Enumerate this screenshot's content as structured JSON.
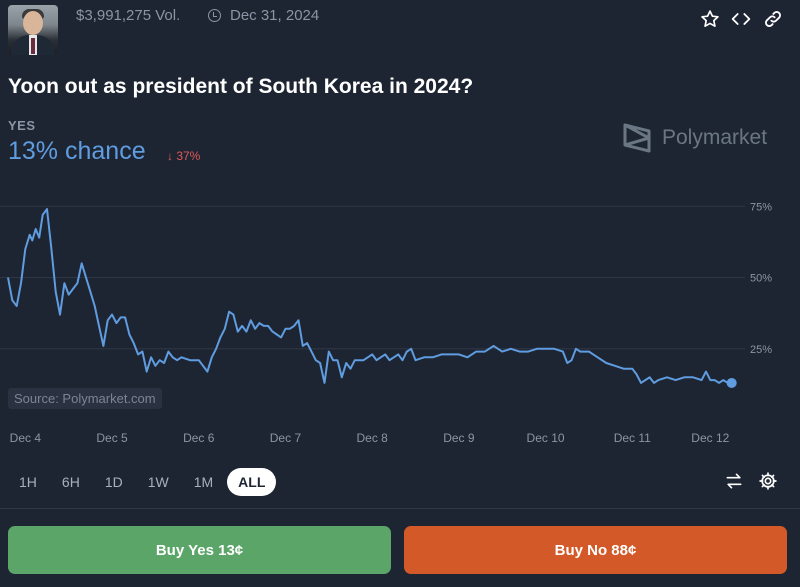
{
  "header": {
    "volume": "$3,991,275 Vol.",
    "end_date": "Dec 31, 2024",
    "icons": [
      "star-icon",
      "embed-code-icon",
      "link-icon"
    ]
  },
  "market": {
    "title": "Yoon out as president of South Korea in 2024?",
    "outcome_label": "YES",
    "chance_text": "13% chance",
    "delta_text": "↓ 37%",
    "brand": "Polymarket"
  },
  "chart": {
    "source": "Source: Polymarket.com"
  },
  "chart_data": {
    "type": "line",
    "ylim": [
      0,
      80
    ],
    "y_ticks": [
      {
        "value": 75,
        "label": "75%"
      },
      {
        "value": 50,
        "label": "50%"
      },
      {
        "value": 25,
        "label": "25%"
      }
    ],
    "x_domain": [
      0,
      8.5
    ],
    "x_ticks": [
      {
        "value": 0.2,
        "label": "Dec 4"
      },
      {
        "value": 1.2,
        "label": "Dec 5"
      },
      {
        "value": 2.2,
        "label": "Dec 6"
      },
      {
        "value": 3.2,
        "label": "Dec 7"
      },
      {
        "value": 4.2,
        "label": "Dec 8"
      },
      {
        "value": 5.2,
        "label": "Dec 9"
      },
      {
        "value": 6.2,
        "label": "Dec 10"
      },
      {
        "value": 7.2,
        "label": "Dec 11"
      },
      {
        "value": 8.1,
        "label": "Dec 12"
      }
    ],
    "series": [
      {
        "color": "#5f9ce0",
        "points": [
          [
            0,
            50
          ],
          [
            0.05,
            42
          ],
          [
            0.1,
            40
          ],
          [
            0.15,
            48
          ],
          [
            0.2,
            60
          ],
          [
            0.25,
            65
          ],
          [
            0.28,
            63
          ],
          [
            0.32,
            67
          ],
          [
            0.36,
            64
          ],
          [
            0.4,
            72
          ],
          [
            0.45,
            74
          ],
          [
            0.5,
            60
          ],
          [
            0.55,
            45
          ],
          [
            0.6,
            37
          ],
          [
            0.65,
            48
          ],
          [
            0.7,
            44
          ],
          [
            0.75,
            46
          ],
          [
            0.8,
            48
          ],
          [
            0.85,
            55
          ],
          [
            0.9,
            50
          ],
          [
            0.95,
            45
          ],
          [
            1.0,
            40
          ],
          [
            1.05,
            33
          ],
          [
            1.1,
            26
          ],
          [
            1.15,
            35
          ],
          [
            1.2,
            37
          ],
          [
            1.25,
            34
          ],
          [
            1.3,
            36
          ],
          [
            1.35,
            36
          ],
          [
            1.4,
            30
          ],
          [
            1.45,
            27
          ],
          [
            1.5,
            23
          ],
          [
            1.55,
            24
          ],
          [
            1.6,
            17
          ],
          [
            1.65,
            22
          ],
          [
            1.7,
            19
          ],
          [
            1.75,
            21
          ],
          [
            1.8,
            20
          ],
          [
            1.85,
            24
          ],
          [
            1.9,
            22
          ],
          [
            1.95,
            21
          ],
          [
            2.0,
            22
          ],
          [
            2.1,
            21
          ],
          [
            2.2,
            21
          ],
          [
            2.3,
            17
          ],
          [
            2.35,
            22
          ],
          [
            2.4,
            25
          ],
          [
            2.45,
            29
          ],
          [
            2.5,
            32
          ],
          [
            2.55,
            38
          ],
          [
            2.6,
            37
          ],
          [
            2.65,
            31
          ],
          [
            2.7,
            33
          ],
          [
            2.75,
            31
          ],
          [
            2.8,
            35
          ],
          [
            2.85,
            32
          ],
          [
            2.9,
            34
          ],
          [
            2.95,
            33
          ],
          [
            3.0,
            33
          ],
          [
            3.05,
            31
          ],
          [
            3.1,
            30
          ],
          [
            3.15,
            29
          ],
          [
            3.2,
            32
          ],
          [
            3.25,
            32
          ],
          [
            3.3,
            33
          ],
          [
            3.35,
            35
          ],
          [
            3.4,
            26
          ],
          [
            3.45,
            27
          ],
          [
            3.5,
            24
          ],
          [
            3.55,
            21
          ],
          [
            3.6,
            20
          ],
          [
            3.65,
            13
          ],
          [
            3.7,
            24
          ],
          [
            3.75,
            21
          ],
          [
            3.8,
            21
          ],
          [
            3.85,
            15
          ],
          [
            3.9,
            20
          ],
          [
            3.95,
            18
          ],
          [
            4.0,
            21
          ],
          [
            4.1,
            21
          ],
          [
            4.2,
            23
          ],
          [
            4.25,
            21
          ],
          [
            4.3,
            22
          ],
          [
            4.35,
            23
          ],
          [
            4.4,
            21
          ],
          [
            4.5,
            23
          ],
          [
            4.55,
            21
          ],
          [
            4.6,
            24
          ],
          [
            4.65,
            25
          ],
          [
            4.7,
            21
          ],
          [
            4.8,
            22
          ],
          [
            4.9,
            22
          ],
          [
            5.0,
            23
          ],
          [
            5.1,
            23
          ],
          [
            5.2,
            23
          ],
          [
            5.3,
            22
          ],
          [
            5.4,
            24
          ],
          [
            5.5,
            24
          ],
          [
            5.6,
            26
          ],
          [
            5.7,
            24
          ],
          [
            5.8,
            25
          ],
          [
            5.9,
            24
          ],
          [
            6.0,
            24
          ],
          [
            6.1,
            25
          ],
          [
            6.2,
            25
          ],
          [
            6.3,
            25
          ],
          [
            6.4,
            24
          ],
          [
            6.45,
            20
          ],
          [
            6.5,
            21
          ],
          [
            6.55,
            25
          ],
          [
            6.6,
            24
          ],
          [
            6.7,
            24
          ],
          [
            6.8,
            22
          ],
          [
            6.9,
            20
          ],
          [
            7.0,
            19
          ],
          [
            7.1,
            18
          ],
          [
            7.2,
            18
          ],
          [
            7.25,
            16
          ],
          [
            7.3,
            13
          ],
          [
            7.35,
            14
          ],
          [
            7.4,
            15
          ],
          [
            7.45,
            13
          ],
          [
            7.5,
            14
          ],
          [
            7.6,
            15
          ],
          [
            7.7,
            14
          ],
          [
            7.8,
            15
          ],
          [
            7.9,
            15
          ],
          [
            8.0,
            14
          ],
          [
            8.05,
            17
          ],
          [
            8.1,
            14
          ],
          [
            8.15,
            14
          ],
          [
            8.2,
            13
          ],
          [
            8.25,
            14
          ],
          [
            8.3,
            13
          ]
        ]
      }
    ]
  },
  "ranges": {
    "items": [
      "1H",
      "6H",
      "1D",
      "1W",
      "1M",
      "ALL"
    ],
    "active": "ALL"
  },
  "actions": {
    "buy_yes": "Buy Yes 13¢",
    "buy_no": "Buy No 88¢"
  }
}
